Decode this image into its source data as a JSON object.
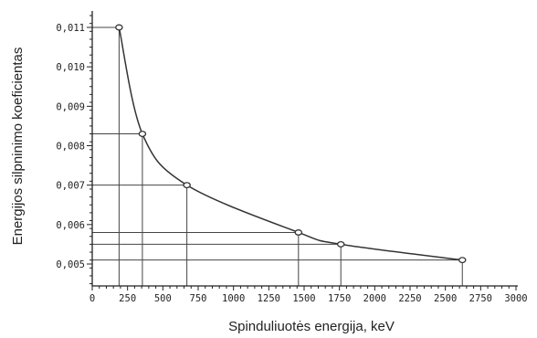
{
  "chart_data": {
    "type": "line",
    "title": "",
    "xlabel": "Spinduliuotės energija, keV",
    "ylabel": "Energijos silpninimo koeficientas",
    "xlim": [
      0,
      3000
    ],
    "ylim": [
      0.0045,
      0.0115
    ],
    "x_ticks": [
      0,
      250,
      500,
      750,
      1000,
      1250,
      1500,
      1750,
      2000,
      2250,
      2500,
      2750,
      3000
    ],
    "x_tick_labels": [
      "0",
      "250",
      "500",
      "750",
      "1000",
      "1250",
      "1500",
      "1750",
      "2000",
      "2250",
      "2500",
      "2750",
      "3000"
    ],
    "y_ticks": [
      0.005,
      0.006,
      0.007,
      0.008,
      0.009,
      0.01,
      0.011
    ],
    "y_tick_labels": [
      "0,005",
      "0,006",
      "0,007",
      "0,008",
      "0,009",
      "0,010",
      "0,011"
    ],
    "grid": false,
    "legend": "none",
    "guide_lines": true,
    "series": [
      {
        "points": [
          {
            "x": 190,
            "y": 0.011
          },
          {
            "x": 355,
            "y": 0.0083
          },
          {
            "x": 670,
            "y": 0.007
          },
          {
            "x": 1460,
            "y": 0.0058
          },
          {
            "x": 1760,
            "y": 0.0055
          },
          {
            "x": 2620,
            "y": 0.0051
          }
        ]
      }
    ],
    "colors": {
      "curve": "#333333",
      "axis": "#222222",
      "guide": "#444444",
      "marker_fill": "#ffffff"
    }
  }
}
